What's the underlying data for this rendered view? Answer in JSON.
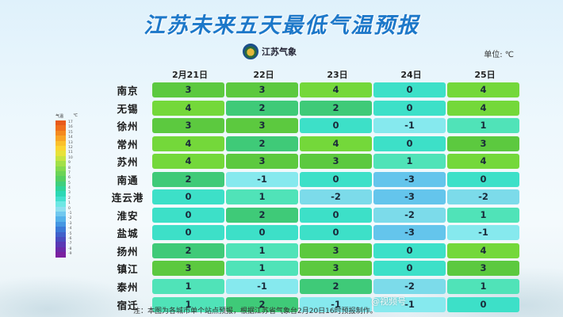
{
  "title": "江苏未来五天最低气温预报",
  "brand": "江苏气象",
  "unit_label": "单位: ℃",
  "dates": [
    "2月21日",
    "22日",
    "23日",
    "24日",
    "25日"
  ],
  "rows": [
    {
      "city": "南京",
      "values": [
        "3",
        "3",
        "4",
        "0",
        "4"
      ]
    },
    {
      "city": "无锡",
      "values": [
        "4",
        "2",
        "2",
        "0",
        "4"
      ]
    },
    {
      "city": "徐州",
      "values": [
        "3",
        "3",
        "0",
        "-1",
        "1"
      ]
    },
    {
      "city": "常州",
      "values": [
        "4",
        "2",
        "4",
        "0",
        "3"
      ]
    },
    {
      "city": "苏州",
      "values": [
        "4",
        "3",
        "3",
        "1",
        "4"
      ]
    },
    {
      "city": "南通",
      "values": [
        "2",
        "-1",
        "0",
        "-3",
        "0"
      ]
    },
    {
      "city": "连云港",
      "values": [
        "0",
        "1",
        "-2",
        "-3",
        "-2"
      ]
    },
    {
      "city": "淮安",
      "values": [
        "0",
        "2",
        "0",
        "-2",
        "1"
      ]
    },
    {
      "city": "盐城",
      "values": [
        "0",
        "0",
        "0",
        "-3",
        "-1"
      ]
    },
    {
      "city": "扬州",
      "values": [
        "2",
        "1",
        "3",
        "0",
        "4"
      ]
    },
    {
      "city": "镇江",
      "values": [
        "3",
        "1",
        "3",
        "0",
        "3"
      ]
    },
    {
      "city": "泰州",
      "values": [
        "1",
        "-1",
        "2",
        "-2",
        "1"
      ]
    },
    {
      "city": "宿迁",
      "values": [
        "1",
        "2",
        "-1",
        "-1",
        "0"
      ]
    }
  ],
  "colors": {
    "5": "#5fd13a",
    "4": "#74d83a",
    "3": "#5cc93f",
    "2": "#3fca78",
    "1": "#50e3b8",
    "0": "#3de0c8",
    "-1": "#86e9ee",
    "-2": "#7cdbea",
    "-3": "#64c5ec"
  },
  "legend": {
    "label_left": "气温",
    "label_right": "℃",
    "colors": [
      "#e85a1a",
      "#ef6f1c",
      "#f48a20",
      "#f8a526",
      "#fbc02c",
      "#fbd532",
      "#e7e23a",
      "#c6e441",
      "#a2e048",
      "#83da4f",
      "#6cd457",
      "#55cf63",
      "#3fcf7d",
      "#30d49a",
      "#2cd8b5",
      "#44dfcf",
      "#6ee7e4",
      "#8fdff0",
      "#71c8ef",
      "#55b1ea",
      "#4596e2",
      "#3c79d7",
      "#4160cb",
      "#4a4bbf",
      "#5a38b4",
      "#6a2aa9",
      "#7a20a0"
    ],
    "ticks": [
      "17",
      "16",
      "15",
      "14",
      "13",
      "12",
      "11",
      "10",
      "9",
      "8",
      "7",
      "6",
      "5",
      "4",
      "3",
      "2",
      "1",
      "0",
      "-1",
      "-2",
      "-3",
      "-4",
      "-5",
      "-6",
      "-7",
      "-8",
      "-9"
    ]
  },
  "note": "注：本图为各城市单个站点预报，根据江苏省气象台2月20日16时预报制作。",
  "watermark": "@视频号"
}
